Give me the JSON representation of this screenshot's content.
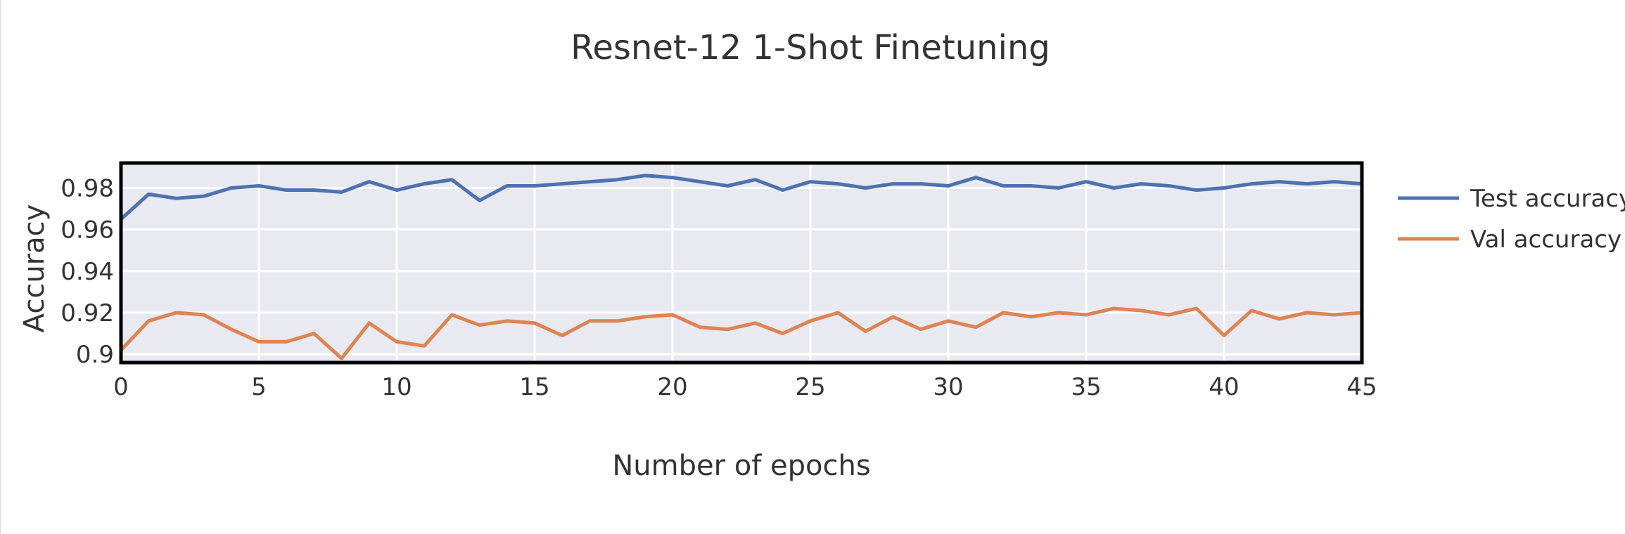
{
  "chart_data": {
    "type": "line",
    "title": "Resnet-12 1-Shot Finetuning",
    "xlabel": "Number of epochs",
    "ylabel": "Accuracy",
    "xlim": [
      0,
      45
    ],
    "ylim": [
      0.896,
      0.992
    ],
    "xticks": [
      0,
      5,
      10,
      15,
      20,
      25,
      30,
      35,
      40,
      45
    ],
    "xtick_labels": [
      "0",
      "5",
      "10",
      "15",
      "20",
      "25",
      "30",
      "35",
      "40",
      "45"
    ],
    "yticks": [
      0.9,
      0.92,
      0.94,
      0.96,
      0.98
    ],
    "ytick_labels": [
      "0.9",
      "0.92",
      "0.94",
      "0.96",
      "0.98"
    ],
    "grid": true,
    "legend_position": "right",
    "x": [
      0,
      1,
      2,
      3,
      4,
      5,
      6,
      7,
      8,
      9,
      10,
      11,
      12,
      13,
      14,
      15,
      16,
      17,
      18,
      19,
      20,
      21,
      22,
      23,
      24,
      25,
      26,
      27,
      28,
      29,
      30,
      31,
      32,
      33,
      34,
      35,
      36,
      37,
      38,
      39,
      40,
      41,
      42,
      43,
      44,
      45
    ],
    "series": [
      {
        "name": "Test accuracy",
        "color": "#4c72b0",
        "values": [
          0.965,
          0.977,
          0.975,
          0.976,
          0.98,
          0.981,
          0.979,
          0.979,
          0.978,
          0.983,
          0.979,
          0.982,
          0.984,
          0.974,
          0.981,
          0.981,
          0.982,
          0.983,
          0.984,
          0.986,
          0.985,
          0.983,
          0.981,
          0.984,
          0.979,
          0.983,
          0.982,
          0.98,
          0.982,
          0.982,
          0.981,
          0.985,
          0.981,
          0.981,
          0.98,
          0.983,
          0.98,
          0.982,
          0.981,
          0.979,
          0.98,
          0.982,
          0.983,
          0.982,
          0.983,
          0.982
        ]
      },
      {
        "name": "Val accuracy",
        "color": "#dd8452",
        "values": [
          0.902,
          0.916,
          0.92,
          0.919,
          0.912,
          0.906,
          0.906,
          0.91,
          0.898,
          0.915,
          0.906,
          0.904,
          0.919,
          0.914,
          0.916,
          0.915,
          0.909,
          0.916,
          0.916,
          0.918,
          0.919,
          0.913,
          0.912,
          0.915,
          0.91,
          0.916,
          0.92,
          0.911,
          0.918,
          0.912,
          0.916,
          0.913,
          0.92,
          0.918,
          0.92,
          0.919,
          0.922,
          0.921,
          0.919,
          0.922,
          0.909,
          0.921,
          0.917,
          0.92,
          0.919,
          0.92
        ]
      }
    ]
  }
}
